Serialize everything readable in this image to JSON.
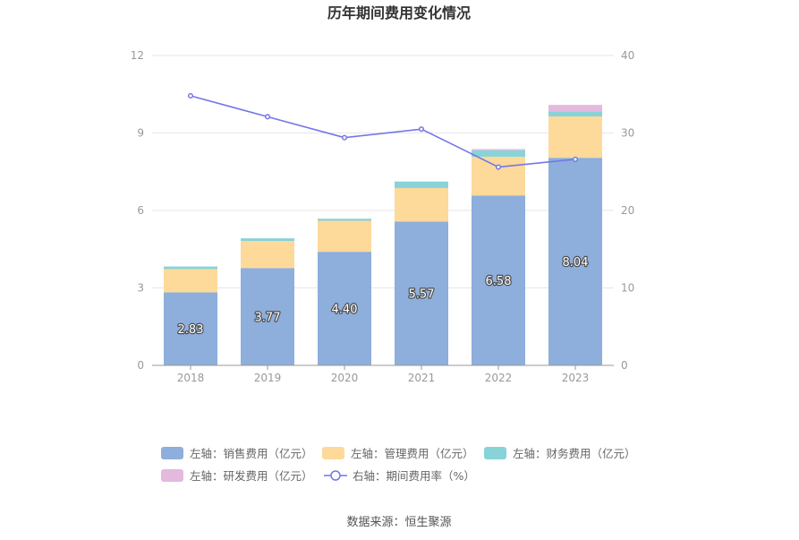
{
  "title": "历年期间费用变化情况",
  "source": "数据来源：恒生聚源",
  "colors": {
    "sales": "#8eaedb",
    "admin": "#fdd99a",
    "finance": "#87d3d8",
    "rnd": "#e3b9de",
    "rate": "#7377e6",
    "axis_text": "#999999",
    "grid": "#e6e6e6",
    "label_text": "#ffffff"
  },
  "legend": [
    {
      "key": "sales",
      "label": "左轴：销售费用（亿元）",
      "icon": "rounded-rect"
    },
    {
      "key": "admin",
      "label": "左轴：管理费用（亿元）",
      "icon": "rounded-rect"
    },
    {
      "key": "finance",
      "label": "左轴：财务费用（亿元）",
      "icon": "rounded-rect"
    },
    {
      "key": "rnd",
      "label": "左轴：研发费用（亿元）",
      "icon": "rounded-rect"
    },
    {
      "key": "rate",
      "label": "右轴：期间费用率（%）",
      "icon": "line-circle"
    }
  ],
  "chart_data": {
    "type": "bar",
    "stacked": true,
    "categories": [
      "2018",
      "2019",
      "2020",
      "2021",
      "2022",
      "2023"
    ],
    "series": [
      {
        "key": "sales",
        "name": "左轴：销售费用（亿元）",
        "axis": "left",
        "values": [
          2.83,
          3.77,
          4.4,
          5.57,
          6.58,
          8.04
        ],
        "labels": [
          "2.83",
          "3.77",
          "4.40",
          "5.57",
          "6.58",
          "8.04"
        ]
      },
      {
        "key": "admin",
        "name": "左轴：管理费用（亿元）",
        "axis": "left",
        "values": [
          0.9,
          1.05,
          1.2,
          1.3,
          1.5,
          1.6
        ]
      },
      {
        "key": "finance",
        "name": "左轴：财务费用（亿元）",
        "axis": "left",
        "values": [
          0.1,
          0.1,
          0.08,
          0.25,
          0.25,
          0.2
        ]
      },
      {
        "key": "rnd",
        "name": "左轴：研发费用（亿元）",
        "axis": "left",
        "values": [
          0,
          0,
          0,
          0,
          0.05,
          0.25
        ]
      },
      {
        "key": "rate",
        "name": "右轴：期间费用率（%）",
        "axis": "right",
        "type": "line",
        "values": [
          34.8,
          32.1,
          29.4,
          30.5,
          25.6,
          26.6
        ]
      }
    ],
    "y_left": {
      "min": 0,
      "max": 12,
      "ticks": [
        0,
        3,
        6,
        9,
        12
      ],
      "tick_labels": [
        "0",
        "3",
        "6",
        "9",
        "12"
      ]
    },
    "y_right": {
      "min": 0,
      "max": 40,
      "ticks": [
        0,
        10,
        20,
        30,
        40
      ],
      "tick_labels": [
        "0",
        "10",
        "20",
        "30",
        "40"
      ]
    },
    "grid": true,
    "legend_position": "bottom"
  }
}
